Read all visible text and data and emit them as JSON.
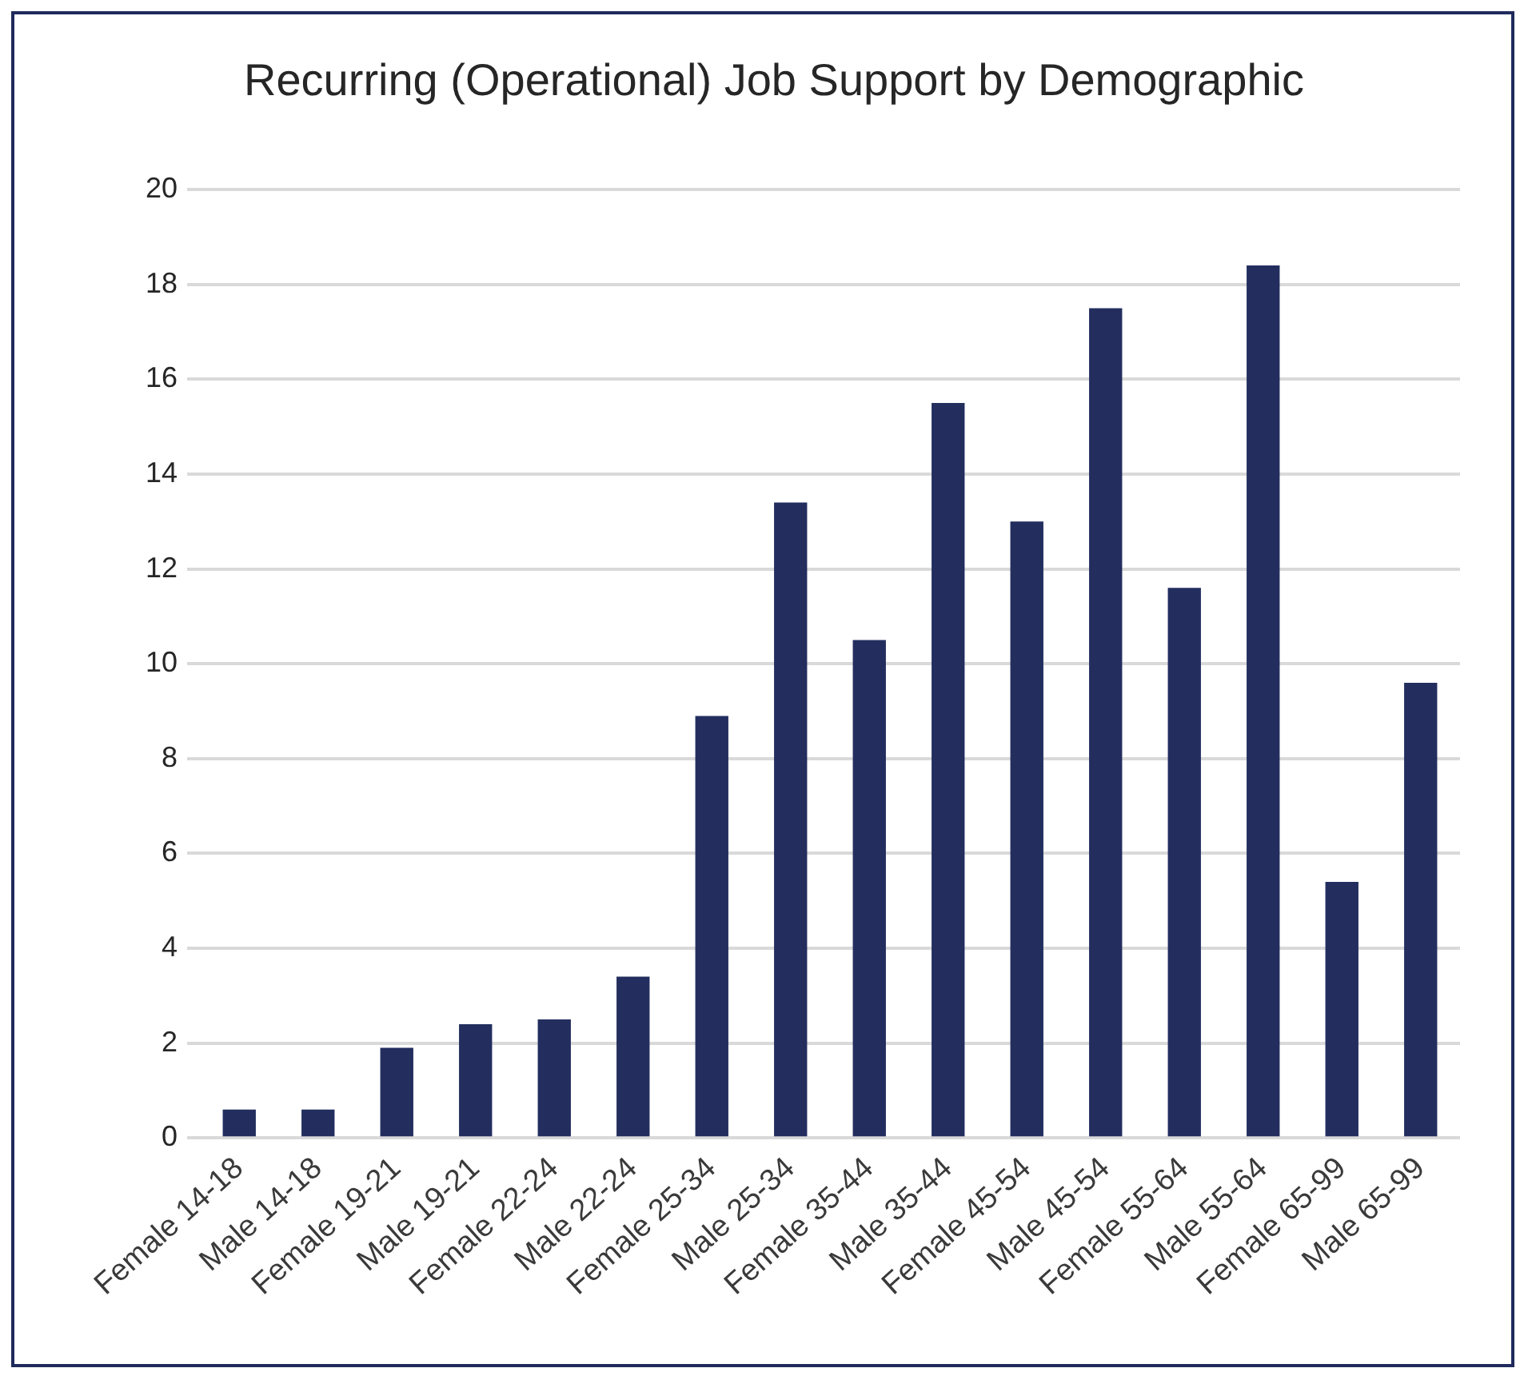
{
  "chart_data": {
    "type": "bar",
    "title": "Recurring (Operational) Job Support by Demographic",
    "categories": [
      "Female 14-18",
      "Male 14-18",
      "Female 19-21",
      "Male 19-21",
      "Female 22-24",
      "Male 22-24",
      "Female 25-34",
      "Male 25-34",
      "Female 35-44",
      "Male 35-44",
      "Female 45-54",
      "Male 45-54",
      "Female 55-64",
      "Male 55-64",
      "Female 65-99",
      "Male 65-99"
    ],
    "values": [
      0.6,
      0.6,
      1.9,
      2.4,
      2.5,
      3.4,
      8.9,
      13.4,
      10.5,
      15.5,
      13.0,
      17.5,
      11.6,
      18.4,
      5.4,
      9.6
    ],
    "color": "#232e5f",
    "ylim": [
      0,
      20
    ],
    "yticks": [
      0,
      2,
      4,
      6,
      8,
      10,
      12,
      14,
      16,
      18,
      20
    ],
    "grid": "y"
  }
}
